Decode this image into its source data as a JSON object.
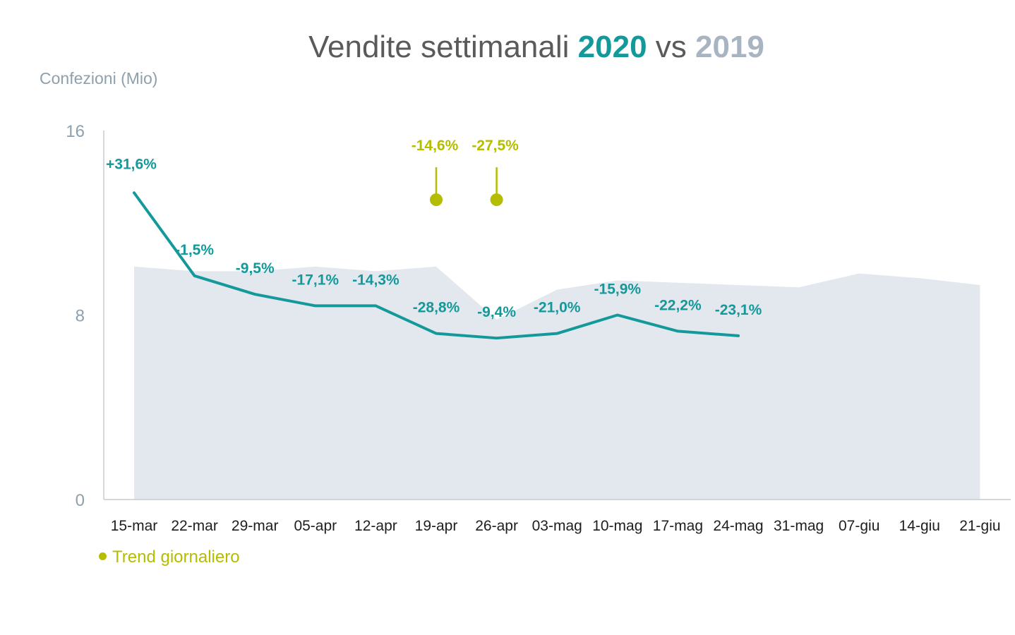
{
  "title": {
    "prefix": "Vendite settimanali",
    "series_a": "2020",
    "middle": "vs",
    "series_b": "2019"
  },
  "colors": {
    "series_2020": "#14999a",
    "series_2019": "#e3e7ee",
    "trend": "#b4bd00",
    "axis": "#c8ccd0"
  },
  "chart_data": {
    "type": "line",
    "ylabel": "Confezioni (Mio)",
    "ylim": [
      0,
      16
    ],
    "yticks": [
      0,
      8,
      16
    ],
    "categories": [
      "15-mar",
      "22-mar",
      "29-mar",
      "05-apr",
      "12-apr",
      "19-apr",
      "26-apr",
      "03-mag",
      "10-mag",
      "17-mag",
      "24-mag",
      "31-mag",
      "07-giu",
      "14-giu",
      "21-giu"
    ],
    "series": [
      {
        "name": "2020",
        "kind": "line",
        "values": [
          13.3,
          9.7,
          8.9,
          8.4,
          8.4,
          7.2,
          7.0,
          7.2,
          8.0,
          7.3,
          7.1,
          null,
          null,
          null,
          null
        ],
        "labels": [
          "+31,6%",
          "-1,5%",
          "-9,5%",
          "-17,1%",
          "-14,3%",
          "-28,8%",
          "-9,4%",
          "-21,0%",
          "-15,9%",
          "-22,2%",
          "-23,1%",
          "",
          "",
          "",
          ""
        ]
      },
      {
        "name": "2019",
        "kind": "area",
        "values": [
          10.1,
          9.9,
          9.9,
          10.1,
          9.9,
          10.1,
          7.8,
          9.1,
          9.5,
          9.4,
          9.3,
          9.2,
          9.8,
          9.6,
          9.3
        ]
      }
    ],
    "annotations": [
      {
        "category": "19-apr",
        "label": "-14,6%",
        "value": 13.0
      },
      {
        "category": "26-apr",
        "label": "-27,5%",
        "value": 13.0
      }
    ],
    "legend": {
      "label": "Trend giornaliero",
      "placement": "bottom-left"
    }
  }
}
